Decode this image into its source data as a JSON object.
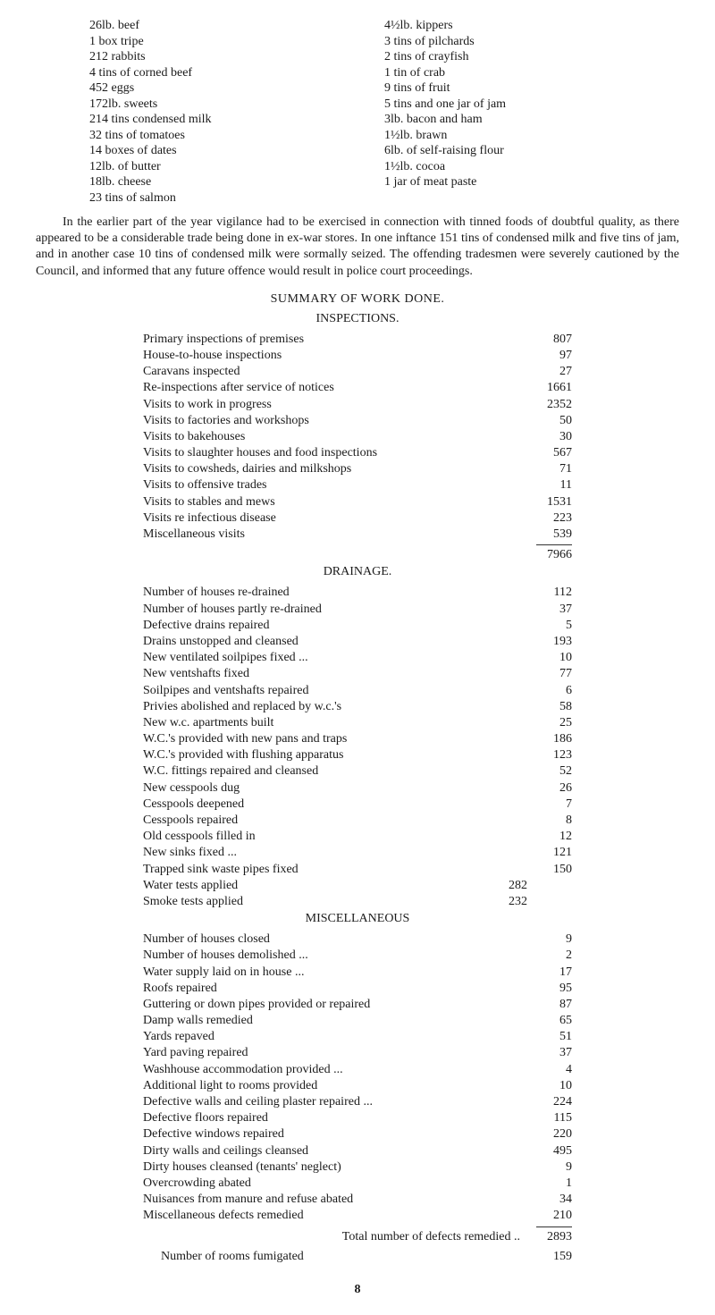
{
  "left_list": [
    "26lb. beef",
    "1 box tripe",
    "212 rabbits",
    "4 tins of corned beef",
    "452 eggs",
    "172lb. sweets",
    "214 tins condensed milk",
    "32 tins of tomatoes",
    "14 boxes of dates",
    "12lb. of butter",
    "18lb. cheese",
    "23 tins of salmon"
  ],
  "right_list": [
    "4½lb. kippers",
    "3 tins of pilchards",
    "2 tins of crayfish",
    "1 tin of crab",
    "9 tins of fruit",
    "5 tins and one jar of jam",
    "3lb. bacon and ham",
    "1½lb. brawn",
    "6lb. of self-raising flour",
    "1½lb. cocoa",
    "1 jar of meat paste"
  ],
  "paragraph": "In the earlier part of the year vigilance had to be exercised in connection with tinned foods of doubtful quality, as there appeared to be a considerable trade being done in ex-war stores. In one in­ftance 151 tins of condensed milk and five tins of jam, and in another case 10 tins of condensed milk were sormally seized. The offending tradesmen were severely cautioned by the Council, and informed that any future offence would result in police court proceedings.",
  "summary_title": "SUMMARY OF WORK DONE.",
  "inspections_title": "INSPECTIONS.",
  "inspections": [
    {
      "label": "Primary inspections of premises",
      "val": "807"
    },
    {
      "label": "House-to-house inspections",
      "val": "97"
    },
    {
      "label": "Caravans inspected",
      "val": "27"
    },
    {
      "label": "Re-inspections after service of notices",
      "val": "1661"
    },
    {
      "label": "Visits to work in progress",
      "val": "2352"
    },
    {
      "label": "Visits to factories and workshops",
      "val": "50"
    },
    {
      "label": "Visits to bakehouses",
      "val": "30"
    },
    {
      "label": "Visits to slaughter houses and food inspections",
      "val": "567"
    },
    {
      "label": "Visits to cowsheds, dairies and milkshops",
      "val": "71"
    },
    {
      "label": "Visits to offensive trades",
      "val": "11"
    },
    {
      "label": "Visits to stables and mews",
      "val": "1531"
    },
    {
      "label": "Visits re infectious disease",
      "val": "223"
    },
    {
      "label": "Miscellaneous visits",
      "val": "539"
    }
  ],
  "inspections_total": "7966",
  "drainage_title": "DRAINAGE.",
  "drainage": [
    {
      "label": "Number of houses re-drained",
      "val": "112"
    },
    {
      "label": "Number of houses partly re-drained",
      "val": "37"
    },
    {
      "label": "Defective drains repaired",
      "val": "5"
    },
    {
      "label": "Drains unstopped and cleansed",
      "val": "193"
    },
    {
      "label": "New ventilated soilpipes fixed ...",
      "val": "10"
    },
    {
      "label": "New ventshafts fixed",
      "val": "77"
    },
    {
      "label": "Soilpipes and ventshafts repaired",
      "val": "6"
    },
    {
      "label": "Privies abolished and replaced by w.c.'s",
      "val": "58"
    },
    {
      "label": "New w.c. apartments built",
      "val": "25"
    },
    {
      "label": "W.C.'s provided with new pans and traps",
      "val": "186"
    },
    {
      "label": "W.C.'s provided with flushing apparatus",
      "val": "123"
    },
    {
      "label": "W.C. fittings repaired and cleansed",
      "val": "52"
    },
    {
      "label": "New cesspools dug",
      "val": "26"
    },
    {
      "label": "Cesspools deepened",
      "val": "7"
    },
    {
      "label": "Cesspools repaired",
      "val": "8"
    },
    {
      "label": "Old cesspools filled in",
      "val": "12"
    },
    {
      "label": "New sinks fixed ...",
      "val": "121"
    },
    {
      "label": "Trapped sink waste pipes fixed",
      "val": "150"
    },
    {
      "label": "Water tests applied",
      "mid": "282",
      "val": ""
    },
    {
      "label": "Smoke tests applied",
      "mid": "232",
      "val": ""
    }
  ],
  "misc_title": "MISCELLANEOUS",
  "misc": [
    {
      "label": "Number of houses closed",
      "val": "9"
    },
    {
      "label": "Number of houses demolished ...",
      "val": "2"
    },
    {
      "label": "Water supply laid on in house ...",
      "val": "17"
    },
    {
      "label": "Roofs repaired",
      "val": "95"
    },
    {
      "label": "Guttering or down pipes provided or repaired",
      "val": "87"
    },
    {
      "label": "Damp walls remedied",
      "val": "65"
    },
    {
      "label": "Yards repaved",
      "val": "51"
    },
    {
      "label": "Yard paving repaired",
      "val": "37"
    },
    {
      "label": "Washhouse accommodation provided ...",
      "val": "4"
    },
    {
      "label": "Additional light to rooms provided",
      "val": "10"
    },
    {
      "label": "Defective walls and ceiling plaster repaired ...",
      "val": "224"
    },
    {
      "label": "Defective floors repaired",
      "val": "115"
    },
    {
      "label": "Defective windows repaired",
      "val": "220"
    },
    {
      "label": "Dirty walls and ceilings cleansed",
      "val": "495"
    },
    {
      "label": "Dirty houses cleansed (tenants' neglect)",
      "val": "9"
    },
    {
      "label": "Overcrowding abated",
      "val": "1"
    },
    {
      "label": "Nuisances from manure and refuse abated",
      "val": "34"
    },
    {
      "label": "Miscellaneous defects remedied",
      "val": "210"
    }
  ],
  "total_defects_label": "Total number of defects remedied ..",
  "total_defects_val": "2893",
  "rooms_fumigated_label": "Number of rooms fumigated",
  "rooms_fumigated_val": "159",
  "page_number": "8"
}
